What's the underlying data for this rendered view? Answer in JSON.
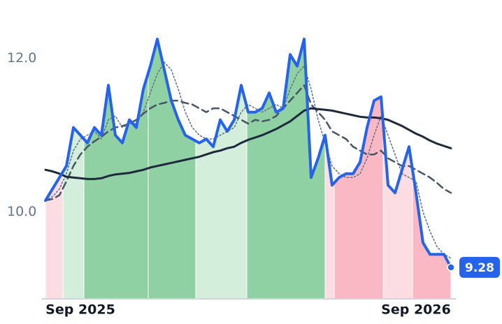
{
  "chart_data": {
    "type": "line",
    "categories": [
      null,
      null,
      null,
      null,
      null,
      "Sep 2025",
      null,
      null,
      null,
      null,
      null,
      null,
      null,
      null,
      null,
      null,
      null,
      null,
      null,
      null,
      null,
      null,
      null,
      null,
      null,
      null,
      null,
      null,
      null,
      null,
      null,
      null,
      null,
      null,
      null,
      null,
      null,
      null,
      null,
      null,
      null,
      null,
      null,
      null,
      null,
      null,
      null,
      null,
      null,
      null,
      null,
      null,
      null,
      "Sep 2026",
      null,
      null,
      null,
      null,
      null
    ],
    "series": [
      {
        "color": "#2563eb",
        "style": "solid",
        "values": [
          10.15,
          10.3,
          10.45,
          10.6,
          11.1,
          11.0,
          10.9,
          11.1,
          11.0,
          11.65,
          11.0,
          10.9,
          11.2,
          11.1,
          11.6,
          11.9,
          12.25,
          11.85,
          11.45,
          11.2,
          11.0,
          10.95,
          10.9,
          10.95,
          10.85,
          11.2,
          11.05,
          11.2,
          11.65,
          11.3,
          11.3,
          11.35,
          11.55,
          11.3,
          11.35,
          12.05,
          11.9,
          12.25,
          10.45,
          10.7,
          11.0,
          10.35,
          10.45,
          10.5,
          10.5,
          10.65,
          11.1,
          11.45,
          11.5,
          10.35,
          10.25,
          10.55,
          10.85,
          10.25,
          9.6,
          9.45,
          9.45,
          9.45,
          9.28
        ]
      },
      {
        "color": "#1e293b",
        "style": "solid",
        "values": [
          10.55,
          10.53,
          10.5,
          10.46,
          10.45,
          10.44,
          10.43,
          10.43,
          10.44,
          10.47,
          10.49,
          10.5,
          10.51,
          10.53,
          10.55,
          10.58,
          10.6,
          10.62,
          10.64,
          10.66,
          10.68,
          10.7,
          10.72,
          10.75,
          10.78,
          10.8,
          10.83,
          10.85,
          10.9,
          10.94,
          10.97,
          11.0,
          11.04,
          11.08,
          11.13,
          11.18,
          11.25,
          11.32,
          11.35,
          11.34,
          11.33,
          11.32,
          11.3,
          11.28,
          11.26,
          11.24,
          11.23,
          11.23,
          11.22,
          11.2,
          11.16,
          11.12,
          11.07,
          11.02,
          10.98,
          10.93,
          10.89,
          10.86,
          10.83
        ]
      },
      {
        "color": "#475569",
        "style": "dashed",
        "values": [
          10.15,
          10.17,
          10.22,
          10.4,
          10.6,
          10.75,
          10.85,
          10.92,
          10.98,
          11.05,
          11.1,
          11.12,
          11.15,
          11.2,
          11.28,
          11.35,
          11.4,
          11.42,
          11.45,
          11.45,
          11.42,
          11.4,
          11.35,
          11.3,
          11.35,
          11.35,
          11.3,
          11.25,
          11.2,
          11.15,
          11.2,
          11.18,
          11.2,
          11.25,
          11.35,
          11.45,
          11.55,
          11.65,
          11.4,
          11.3,
          11.2,
          11.05,
          11.0,
          10.95,
          10.85,
          10.8,
          10.75,
          10.75,
          10.8,
          10.7,
          10.65,
          10.6,
          10.6,
          10.55,
          10.5,
          10.45,
          10.38,
          10.3,
          10.25
        ]
      },
      {
        "color": "#64748b",
        "style": "dotted",
        "values": [
          10.15,
          10.2,
          10.3,
          10.5,
          10.8,
          10.95,
          11.0,
          11.05,
          10.95,
          11.2,
          11.25,
          11.1,
          11.15,
          11.15,
          11.3,
          11.55,
          11.8,
          11.95,
          11.85,
          11.6,
          11.3,
          11.1,
          11.0,
          10.95,
          10.95,
          11.0,
          11.05,
          11.1,
          11.3,
          11.4,
          11.35,
          11.3,
          11.35,
          11.4,
          11.35,
          11.6,
          11.8,
          11.9,
          11.6,
          11.2,
          10.9,
          10.6,
          10.5,
          10.45,
          10.45,
          10.5,
          10.7,
          11.0,
          11.25,
          11.0,
          10.75,
          10.5,
          10.45,
          10.4,
          10.0,
          9.75,
          9.55,
          9.45,
          9.4
        ]
      }
    ],
    "regions": [
      {
        "from": 0,
        "to": 2.5,
        "color": "#fcdde3"
      },
      {
        "from": 2.5,
        "to": 5.5,
        "color": "#d4eedc"
      },
      {
        "from": 5.5,
        "to": 14.7,
        "color": "#8fd1a2"
      },
      {
        "from": 14.7,
        "to": 21.5,
        "color": "#8fd1a2"
      },
      {
        "from": 21.5,
        "to": 28.8,
        "color": "#d4eedc"
      },
      {
        "from": 28.8,
        "to": 40,
        "color": "#8fd1a2"
      },
      {
        "from": 40,
        "to": 41.3,
        "color": "#fcdde3"
      },
      {
        "from": 41.3,
        "to": 48.3,
        "color": "#f9b8c4"
      },
      {
        "from": 48.3,
        "to": 52.5,
        "color": "#fcdde3"
      },
      {
        "from": 52.5,
        "to": 58,
        "color": "#f9b8c4"
      }
    ],
    "ylim": [
      8.87,
      12.76
    ],
    "yticks": [
      {
        "value": 10,
        "label": "10.0"
      },
      {
        "value": 12,
        "label": "12.0"
      }
    ],
    "last_value_color": "#2563eb"
  }
}
